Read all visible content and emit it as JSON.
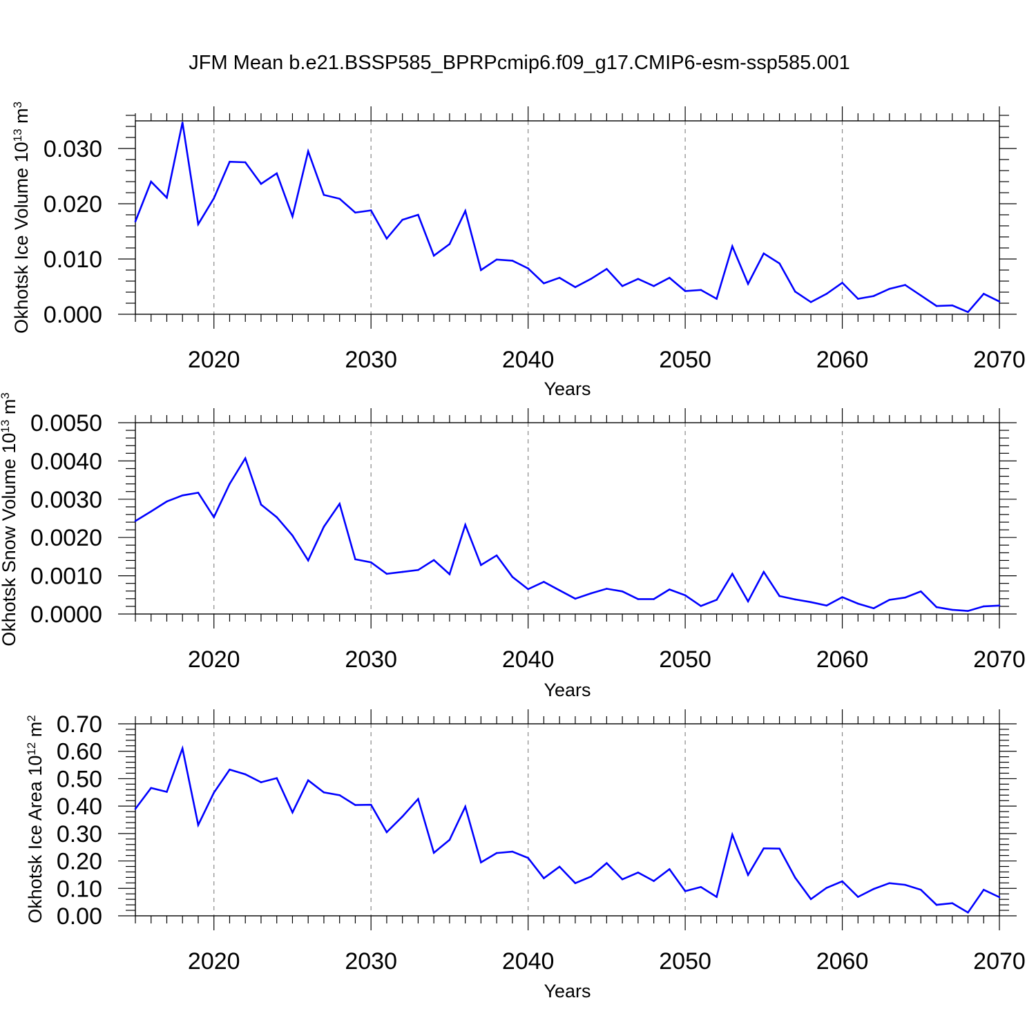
{
  "title": "JFM Mean b.e21.BSSP585_BPRPcmip6.f09_g17.CMIP6-esm-ssp585.001",
  "colors": {
    "series": "#0000ff",
    "axis": "#000000",
    "grid": "#888888"
  },
  "chart_data": [
    {
      "type": "line",
      "xlabel": "Years",
      "ylabel": {
        "text": "Okhotsk Ice Volume 10",
        "exponent": "13",
        "unit": " m",
        "unit_exponent": "3"
      },
      "xlim": [
        2015,
        2070
      ],
      "ylim": [
        0,
        0.035
      ],
      "xticks": [
        "2020",
        "2030",
        "2040",
        "2050",
        "2060",
        "2070"
      ],
      "yticks": [
        "0.000",
        "0.010",
        "0.020",
        "0.030"
      ],
      "grid": "vertical dashed at major x ticks",
      "x": [
        2015,
        2016,
        2017,
        2018,
        2019,
        2020,
        2021,
        2022,
        2023,
        2024,
        2025,
        2026,
        2027,
        2028,
        2029,
        2030,
        2031,
        2032,
        2033,
        2034,
        2035,
        2036,
        2037,
        2038,
        2039,
        2040,
        2041,
        2042,
        2043,
        2044,
        2045,
        2046,
        2047,
        2048,
        2049,
        2050,
        2051,
        2052,
        2053,
        2054,
        2055,
        2056,
        2057,
        2058,
        2059,
        2060,
        2061,
        2062,
        2063,
        2064,
        2065,
        2066,
        2067,
        2068,
        2069,
        2070
      ],
      "values": [
        0.0168,
        0.024,
        0.0211,
        0.0347,
        0.0163,
        0.021,
        0.0276,
        0.0275,
        0.0236,
        0.0255,
        0.0177,
        0.0295,
        0.0216,
        0.0209,
        0.0184,
        0.0188,
        0.0137,
        0.0171,
        0.018,
        0.0106,
        0.0127,
        0.0187,
        0.008,
        0.0099,
        0.0097,
        0.0083,
        0.0056,
        0.0066,
        0.0049,
        0.0064,
        0.0082,
        0.0051,
        0.0064,
        0.0051,
        0.0066,
        0.0042,
        0.0044,
        0.0028,
        0.0123,
        0.0055,
        0.011,
        0.0092,
        0.0041,
        0.0022,
        0.0037,
        0.0057,
        0.0028,
        0.0033,
        0.0046,
        0.0053,
        0.0034,
        0.0015,
        0.0016,
        0.0004,
        0.0037,
        0.0023
      ]
    },
    {
      "type": "line",
      "xlabel": "Years",
      "ylabel": {
        "text": "Okhotsk Snow Volume 10",
        "exponent": "13",
        "unit": " m",
        "unit_exponent": "3"
      },
      "xlim": [
        2015,
        2070
      ],
      "ylim": [
        0,
        0.005
      ],
      "xticks": [
        "2020",
        "2030",
        "2040",
        "2050",
        "2060",
        "2070"
      ],
      "yticks": [
        "0.0000",
        "0.0010",
        "0.0020",
        "0.0030",
        "0.0040",
        "0.0050"
      ],
      "grid": "vertical dashed at major x ticks",
      "x": [
        2015,
        2016,
        2017,
        2018,
        2019,
        2020,
        2021,
        2022,
        2023,
        2024,
        2025,
        2026,
        2027,
        2028,
        2029,
        2030,
        2031,
        2032,
        2033,
        2034,
        2035,
        2036,
        2037,
        2038,
        2039,
        2040,
        2041,
        2042,
        2043,
        2044,
        2045,
        2046,
        2047,
        2048,
        2049,
        2050,
        2051,
        2052,
        2053,
        2054,
        2055,
        2056,
        2057,
        2058,
        2059,
        2060,
        2061,
        2062,
        2063,
        2064,
        2065,
        2066,
        2067,
        2068,
        2069,
        2070
      ],
      "values": [
        0.00243,
        0.00268,
        0.00294,
        0.0031,
        0.00317,
        0.00253,
        0.0034,
        0.00407,
        0.00286,
        0.00253,
        0.00205,
        0.0014,
        0.00228,
        0.00288,
        0.00143,
        0.00135,
        0.00105,
        0.0011,
        0.00115,
        0.00141,
        0.00104,
        0.00233,
        0.00128,
        0.00153,
        0.00097,
        0.00065,
        0.00084,
        0.00062,
        0.0004,
        0.00054,
        0.00066,
        0.00059,
        0.00039,
        0.00039,
        0.00064,
        0.00049,
        0.00021,
        0.00037,
        0.00105,
        0.00033,
        0.0011,
        0.00047,
        0.00038,
        0.00031,
        0.00022,
        0.00044,
        0.00027,
        0.00015,
        0.00037,
        0.00043,
        0.00059,
        0.00018,
        0.00011,
        8e-05,
        0.0002,
        0.00022
      ]
    },
    {
      "type": "line",
      "xlabel": "Years",
      "ylabel": {
        "text": "Okhotsk Ice Area 10",
        "exponent": "12",
        "unit": " m",
        "unit_exponent": "2"
      },
      "xlim": [
        2015,
        2070
      ],
      "ylim": [
        0,
        0.7
      ],
      "xticks": [
        "2020",
        "2030",
        "2040",
        "2050",
        "2060",
        "2070"
      ],
      "yticks": [
        "0.00",
        "0.10",
        "0.20",
        "0.30",
        "0.40",
        "0.50",
        "0.60",
        "0.70"
      ],
      "grid": "vertical dashed at major x ticks",
      "x": [
        2015,
        2016,
        2017,
        2018,
        2019,
        2020,
        2021,
        2022,
        2023,
        2024,
        2025,
        2026,
        2027,
        2028,
        2029,
        2030,
        2031,
        2032,
        2033,
        2034,
        2035,
        2036,
        2037,
        2038,
        2039,
        2040,
        2041,
        2042,
        2043,
        2044,
        2045,
        2046,
        2047,
        2048,
        2049,
        2050,
        2051,
        2052,
        2053,
        2054,
        2055,
        2056,
        2057,
        2058,
        2059,
        2060,
        2061,
        2062,
        2063,
        2064,
        2065,
        2066,
        2067,
        2068,
        2069,
        2070
      ],
      "values": [
        0.39,
        0.466,
        0.452,
        0.61,
        0.331,
        0.449,
        0.533,
        0.516,
        0.487,
        0.502,
        0.377,
        0.494,
        0.45,
        0.44,
        0.404,
        0.405,
        0.305,
        0.362,
        0.426,
        0.23,
        0.277,
        0.398,
        0.195,
        0.229,
        0.234,
        0.211,
        0.137,
        0.179,
        0.119,
        0.143,
        0.192,
        0.133,
        0.158,
        0.127,
        0.17,
        0.09,
        0.105,
        0.069,
        0.296,
        0.149,
        0.246,
        0.245,
        0.139,
        0.061,
        0.102,
        0.126,
        0.069,
        0.098,
        0.119,
        0.113,
        0.095,
        0.04,
        0.046,
        0.012,
        0.095,
        0.068
      ]
    }
  ]
}
